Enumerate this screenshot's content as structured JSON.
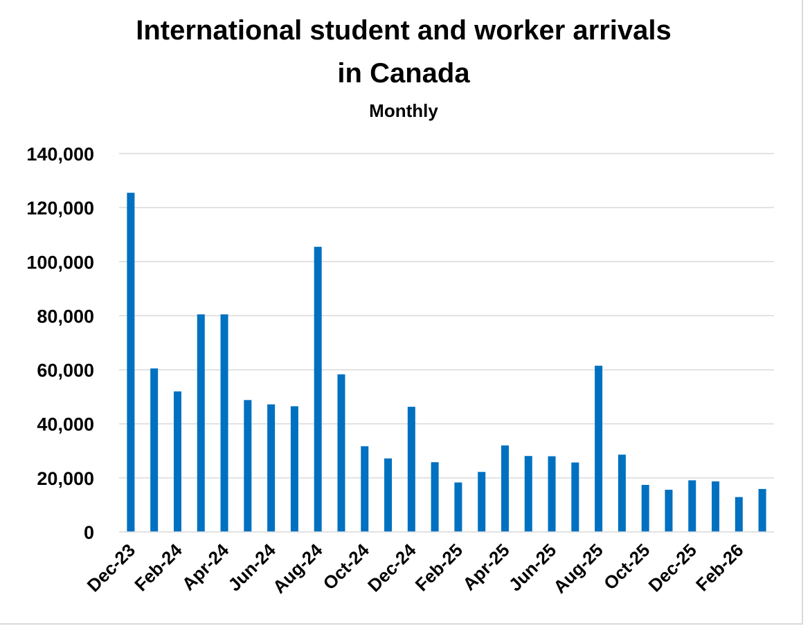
{
  "chart_data": {
    "type": "bar",
    "title_line1": "International student and worker arrivals",
    "title_line2": "in Canada",
    "subtitle": "Monthly",
    "xlabel": "",
    "ylabel": "",
    "ylim": [
      0,
      140000
    ],
    "yticks": [
      0,
      20000,
      40000,
      60000,
      80000,
      100000,
      120000,
      140000
    ],
    "ytick_labels": [
      "0",
      "20,000",
      "40,000",
      "60,000",
      "80,000",
      "100,000",
      "120,000",
      "140,000"
    ],
    "grid": true,
    "bar_color": "#0070C0",
    "grid_color": "#d9d9d9",
    "categories": [
      "Dec-23",
      "Jan-24",
      "Feb-24",
      "Mar-24",
      "Apr-24",
      "May-24",
      "Jun-24",
      "Jul-24",
      "Aug-24",
      "Sep-24",
      "Oct-24",
      "Nov-24",
      "Dec-24",
      "Jan-25",
      "Feb-25",
      "Mar-25",
      "Apr-25",
      "May-25",
      "Jun-25",
      "Jul-25",
      "Aug-25",
      "Sep-25",
      "Oct-25",
      "Nov-25",
      "Dec-25",
      "Jan-26",
      "Feb-26",
      "Mar-26"
    ],
    "category_labels_shown": [
      "Dec-23",
      "",
      "Feb-24",
      "",
      "Apr-24",
      "",
      "Jun-24",
      "",
      "Aug-24",
      "",
      "Oct-24",
      "",
      "Dec-24",
      "",
      "Feb-25",
      "",
      "Apr-25",
      "",
      "Jun-25",
      "",
      "Aug-25",
      "",
      "Oct-25",
      "",
      "Dec-25",
      "",
      "Feb-26",
      ""
    ],
    "values": [
      125500,
      60500,
      52000,
      80500,
      80500,
      48800,
      47200,
      46500,
      105500,
      58300,
      31700,
      27200,
      46300,
      25800,
      18300,
      22200,
      32000,
      28100,
      28000,
      25700,
      61500,
      28600,
      17400,
      15600,
      19100,
      18700,
      12900,
      15900
    ]
  }
}
